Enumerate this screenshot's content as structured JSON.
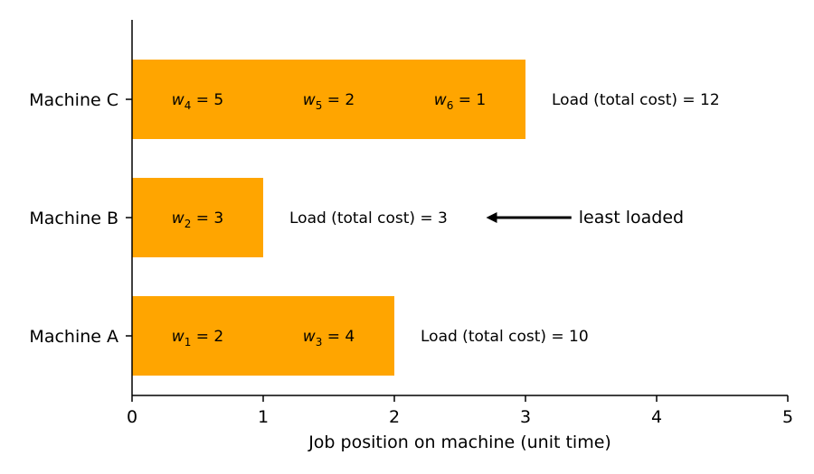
{
  "chart_data": {
    "type": "bar",
    "orientation": "horizontal",
    "stacked": true,
    "bar_color": "#FFA500",
    "xlabel": "Job position on machine (unit time)",
    "ylabel": "",
    "xlim": [
      0,
      5
    ],
    "x_ticks": [
      "0",
      "1",
      "2",
      "3",
      "4",
      "5"
    ],
    "grid": false,
    "categories": [
      "Machine A",
      "Machine B",
      "Machine C"
    ],
    "bars": [
      {
        "category": "Machine A",
        "jobs": [
          {
            "var": "w",
            "sub": "1",
            "weight": 2,
            "start": 0,
            "end": 1
          },
          {
            "var": "w",
            "sub": "3",
            "weight": 4,
            "start": 1,
            "end": 2
          }
        ],
        "length": 2,
        "load_label": "Load (total cost) = 10",
        "load": 10
      },
      {
        "category": "Machine B",
        "jobs": [
          {
            "var": "w",
            "sub": "2",
            "weight": 3,
            "start": 0,
            "end": 1
          }
        ],
        "length": 1,
        "load_label": "Load (total cost) = 3",
        "load": 3
      },
      {
        "category": "Machine C",
        "jobs": [
          {
            "var": "w",
            "sub": "4",
            "weight": 5,
            "start": 0,
            "end": 1
          },
          {
            "var": "w",
            "sub": "5",
            "weight": 2,
            "start": 1,
            "end": 2
          },
          {
            "var": "w",
            "sub": "6",
            "weight": 1,
            "start": 2,
            "end": 3
          }
        ],
        "length": 3,
        "load_label": "Load (total cost) = 12",
        "load": 12
      }
    ],
    "annotation": {
      "text": "least loaded",
      "target": "Machine B",
      "arrow_from_x": 3.35,
      "arrow_to_x": 2.7
    }
  }
}
